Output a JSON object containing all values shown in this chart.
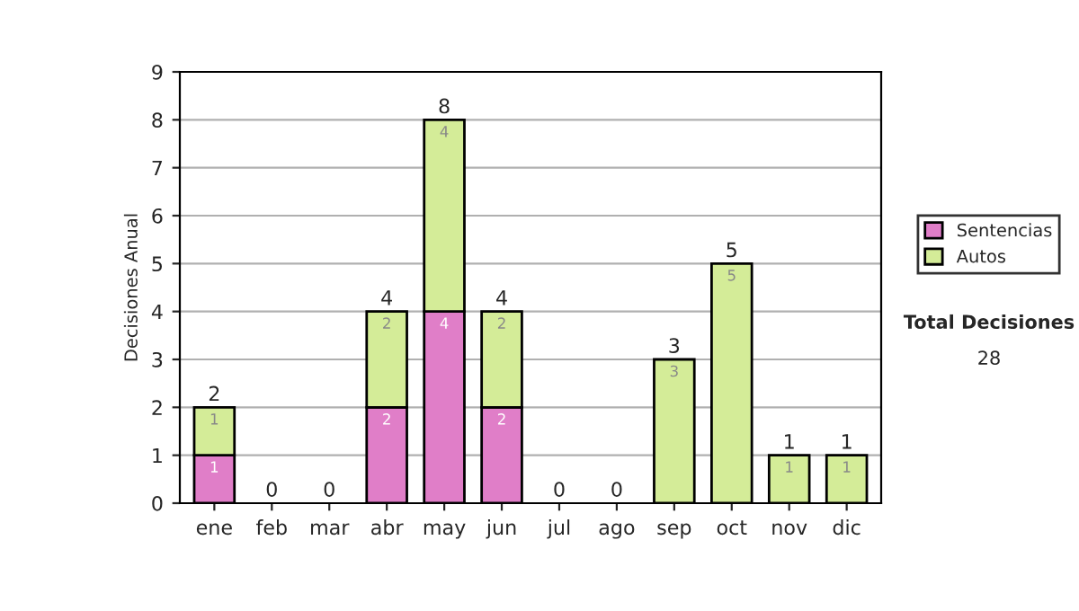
{
  "chart_data": {
    "type": "bar",
    "stacked": true,
    "ylabel": "Decisiones Anual",
    "categories": [
      "ene",
      "feb",
      "mar",
      "abr",
      "may",
      "jun",
      "jul",
      "ago",
      "sep",
      "oct",
      "nov",
      "dic"
    ],
    "series": [
      {
        "name": "Sentencias",
        "color": "#e07ec8",
        "values": [
          1,
          0,
          0,
          2,
          4,
          2,
          0,
          0,
          0,
          0,
          0,
          0
        ],
        "value_labels": [
          "1",
          null,
          null,
          "2",
          "4",
          "2",
          null,
          null,
          null,
          null,
          null,
          null
        ]
      },
      {
        "name": "Autos",
        "color": "#d4ec98",
        "values": [
          1,
          0,
          0,
          2,
          4,
          2,
          0,
          0,
          3,
          5,
          1,
          1
        ],
        "value_labels": [
          "1",
          null,
          null,
          "2",
          "4",
          "2",
          null,
          null,
          "3",
          "5",
          "1",
          "1"
        ]
      }
    ],
    "totals": [
      "2",
      "0",
      "0",
      "4",
      "8",
      "4",
      "0",
      "0",
      "3",
      "5",
      "1",
      "1"
    ],
    "ylim": [
      0,
      9
    ],
    "yticks": [
      0,
      1,
      2,
      3,
      4,
      5,
      6,
      7,
      8,
      9
    ],
    "grid": "y",
    "legend": "right",
    "annotations": [
      "Total Decisiones",
      "28"
    ]
  }
}
